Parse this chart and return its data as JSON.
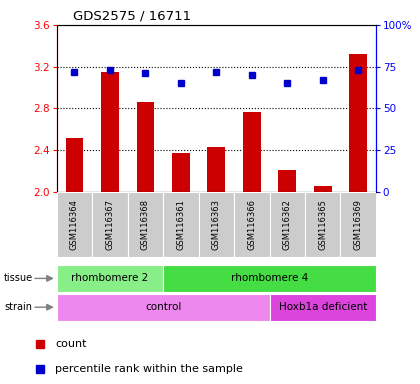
{
  "title": "GDS2575 / 16711",
  "samples": [
    "GSM116364",
    "GSM116367",
    "GSM116368",
    "GSM116361",
    "GSM116363",
    "GSM116366",
    "GSM116362",
    "GSM116365",
    "GSM116369"
  ],
  "counts": [
    2.52,
    3.15,
    2.86,
    2.37,
    2.43,
    2.77,
    2.21,
    2.06,
    3.32
  ],
  "percentile_ranks": [
    72,
    73,
    71,
    65,
    72,
    70,
    65,
    67,
    73
  ],
  "ylim_left": [
    2.0,
    3.6
  ],
  "ylim_right": [
    0,
    100
  ],
  "yticks_left": [
    2.0,
    2.4,
    2.8,
    3.2,
    3.6
  ],
  "yticks_right": [
    0,
    25,
    50,
    75,
    100
  ],
  "ytick_labels_right": [
    "0",
    "25",
    "50",
    "75",
    "100%"
  ],
  "bar_color": "#cc0000",
  "dot_color": "#0000cc",
  "tissue_groups": [
    {
      "label": "rhombomere 2",
      "start": 0,
      "end": 3,
      "color": "#88ee88"
    },
    {
      "label": "rhombomere 4",
      "start": 3,
      "end": 9,
      "color": "#44dd44"
    }
  ],
  "strain_groups": [
    {
      "label": "control",
      "start": 0,
      "end": 6,
      "color": "#ee88ee"
    },
    {
      "label": "Hoxb1a deficient",
      "start": 6,
      "end": 9,
      "color": "#dd44dd"
    }
  ],
  "legend_count_label": "count",
  "legend_pct_label": "percentile rank within the sample",
  "sample_bg_color": "#cccccc",
  "plot_bg": "#ffffff",
  "bar_width": 0.5
}
